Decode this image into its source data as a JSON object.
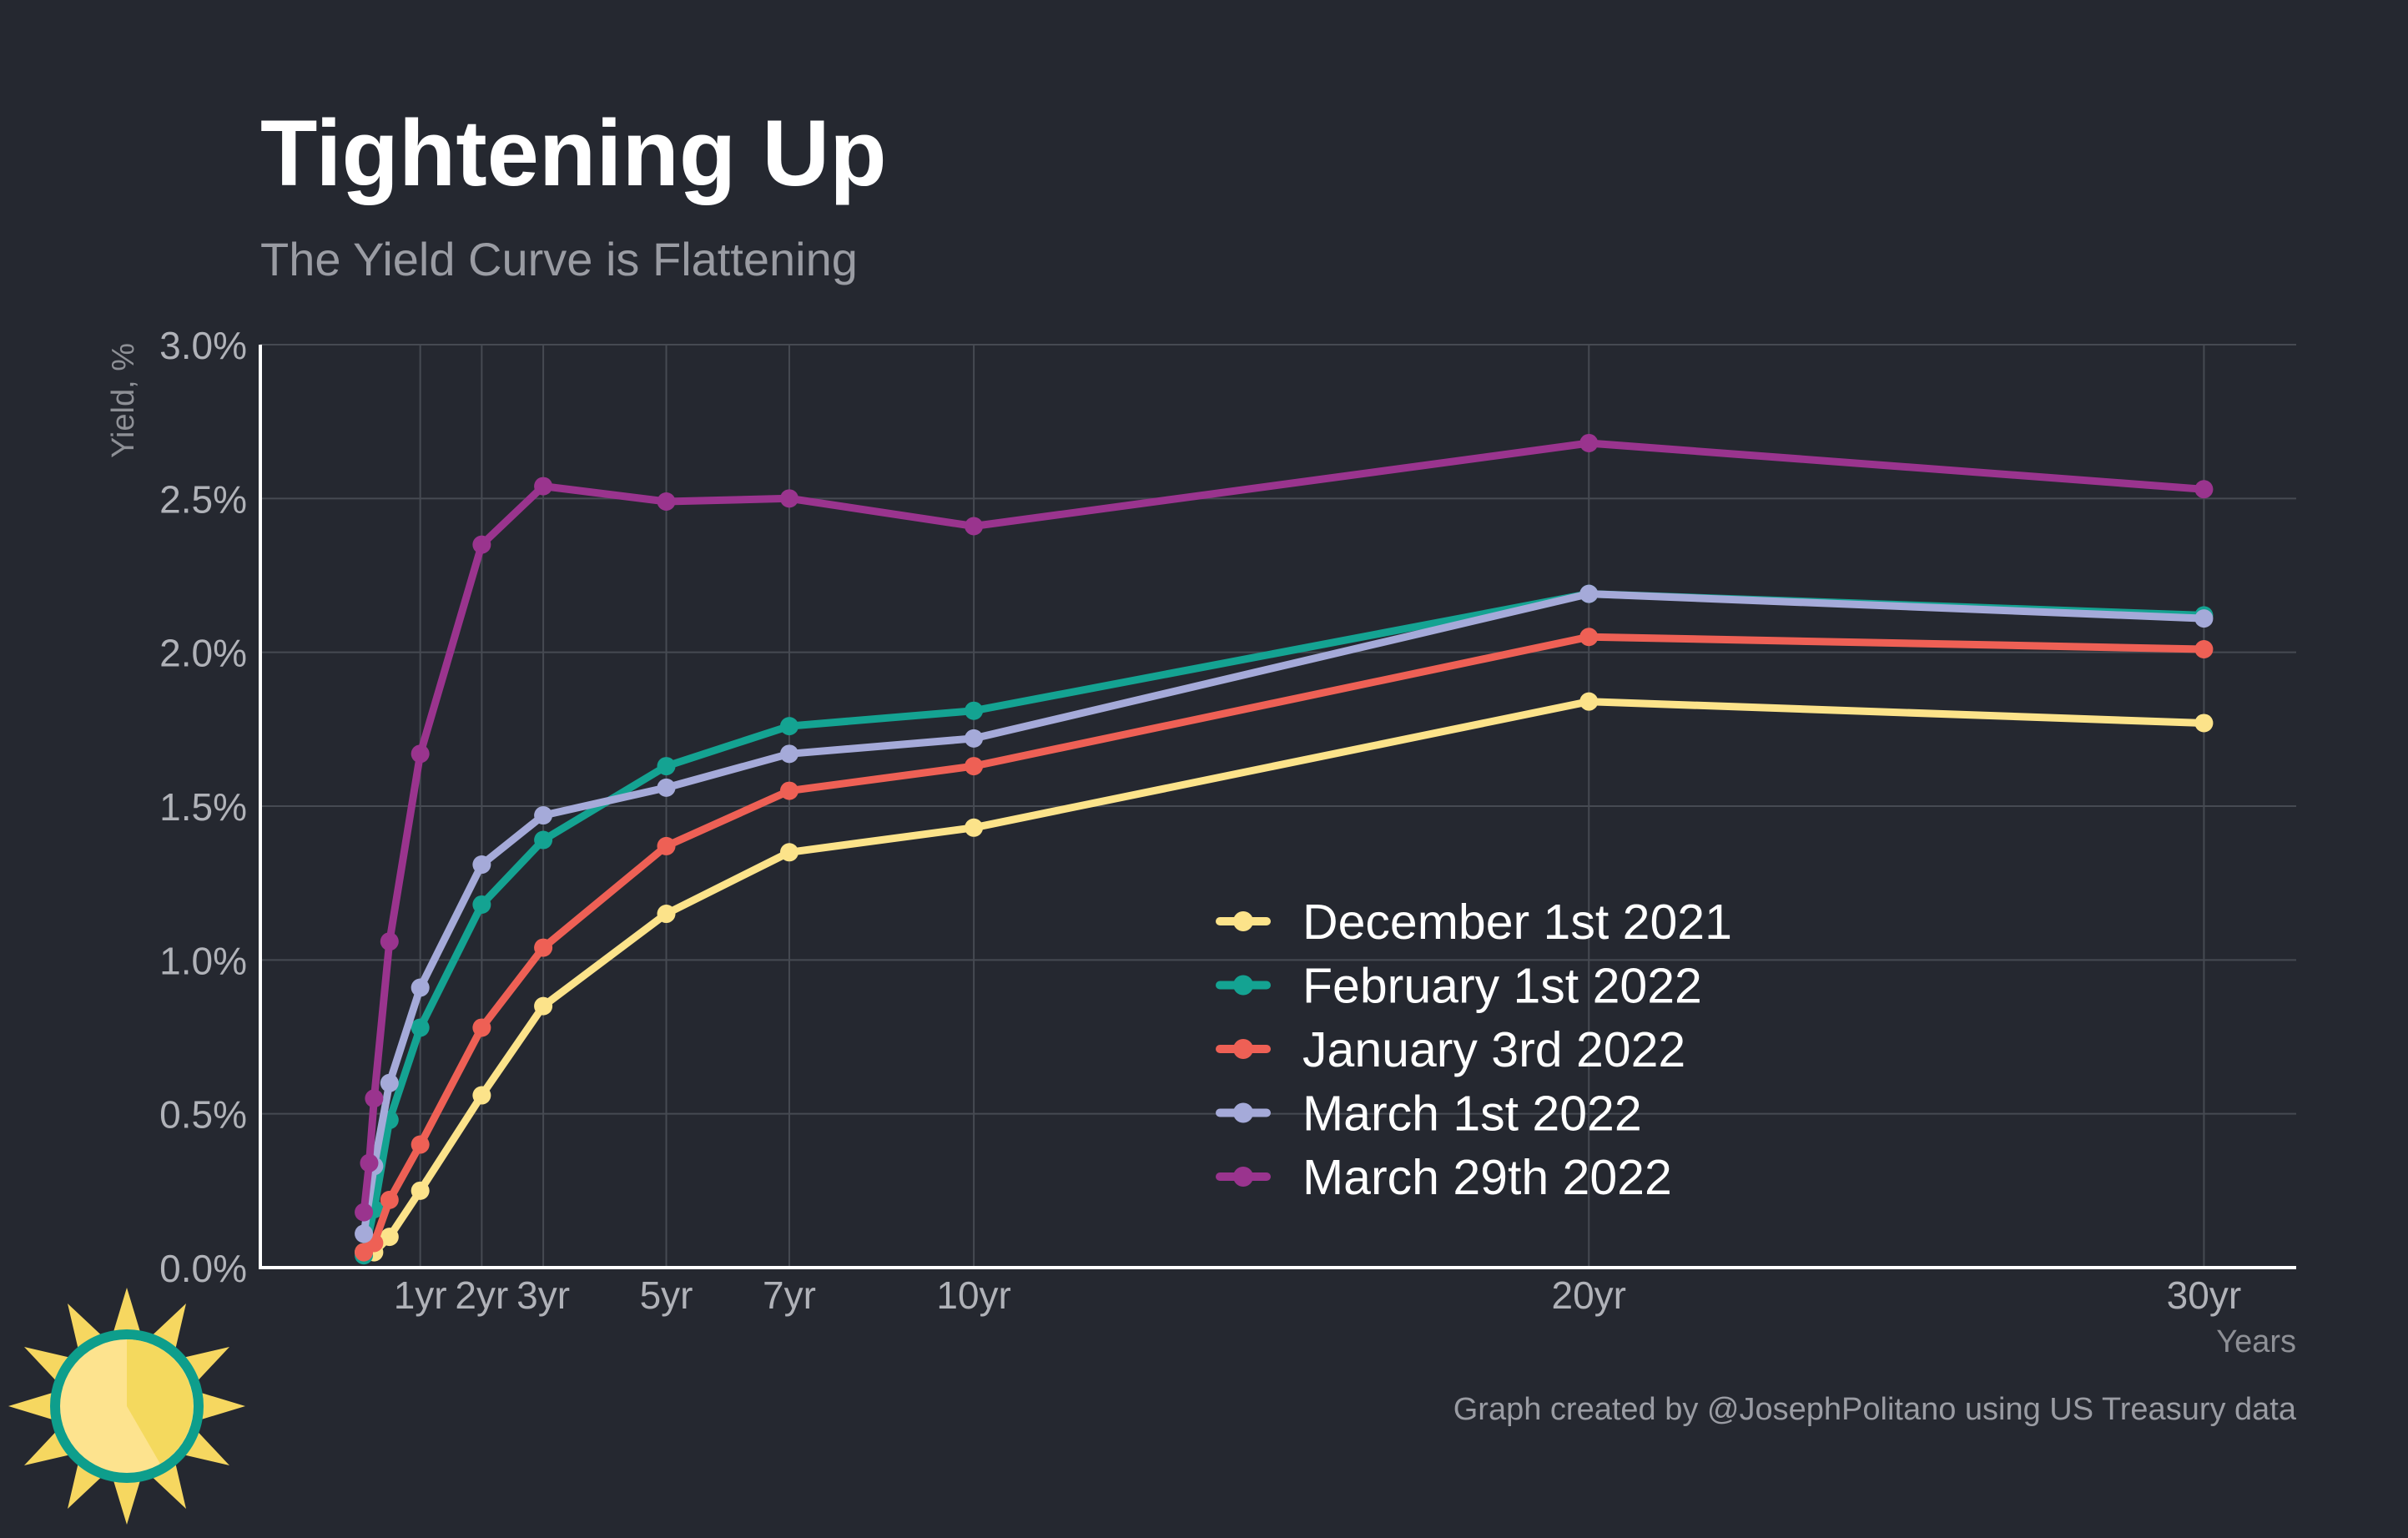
{
  "chart_data": {
    "type": "line",
    "title": "Tightening Up",
    "subtitle": "The Yield Curve is Flattening",
    "ylabel": "Yield, %",
    "xlabel": "Years",
    "caption": "Graph created by @JosephPolitano using US Treasury data",
    "x": [
      0.083,
      0.25,
      0.5,
      1,
      2,
      3,
      5,
      7,
      10,
      20,
      30
    ],
    "xticks": [
      {
        "value": 1,
        "label": "1yr"
      },
      {
        "value": 2,
        "label": "2yr"
      },
      {
        "value": 3,
        "label": "3yr"
      },
      {
        "value": 5,
        "label": "5yr"
      },
      {
        "value": 7,
        "label": "7yr"
      },
      {
        "value": 10,
        "label": "10yr"
      },
      {
        "value": 20,
        "label": "20yr"
      },
      {
        "value": 30,
        "label": "30yr"
      }
    ],
    "yticks": [
      {
        "value": 0.0,
        "label": "0.0%"
      },
      {
        "value": 0.5,
        "label": "0.5%"
      },
      {
        "value": 1.0,
        "label": "1.0%"
      },
      {
        "value": 1.5,
        "label": "1.5%"
      },
      {
        "value": 2.0,
        "label": "2.0%"
      },
      {
        "value": 2.5,
        "label": "2.5%"
      },
      {
        "value": 3.0,
        "label": "3.0%"
      }
    ],
    "xlim": [
      -1.6,
      31.5
    ],
    "ylim": [
      0,
      3.0
    ],
    "grid": true,
    "legend_position": "center-right",
    "series": [
      {
        "name": "December 1st 2021",
        "color": "#fce38a",
        "values": [
          0.05,
          0.05,
          0.1,
          0.25,
          0.56,
          0.85,
          1.15,
          1.35,
          1.43,
          1.84,
          1.77
        ]
      },
      {
        "name": "February 1st 2022",
        "color": "#14a392",
        "values": [
          0.04,
          0.19,
          0.48,
          0.78,
          1.18,
          1.39,
          1.63,
          1.76,
          1.81,
          2.19,
          2.12
        ]
      },
      {
        "name": "January 3rd 2022",
        "color": "#ee6055",
        "values": [
          0.05,
          0.08,
          0.22,
          0.4,
          0.78,
          1.04,
          1.37,
          1.55,
          1.63,
          2.05,
          2.01
        ]
      },
      {
        "name": "March 1st 2022",
        "color": "#a5aad9",
        "values": [
          0.11,
          0.33,
          0.6,
          0.91,
          1.31,
          1.47,
          1.56,
          1.67,
          1.72,
          2.19,
          2.11
        ]
      },
      {
        "name": "March 29th 2022",
        "color": "#9a348e",
        "values": [
          0.18,
          0.55,
          1.06,
          1.67,
          2.35,
          2.54,
          2.49,
          2.5,
          2.41,
          2.68,
          2.53
        ]
      }
    ],
    "extra_points": [
      {
        "series": "March 29th 2022",
        "x": 0.17,
        "value": 0.34
      }
    ]
  }
}
